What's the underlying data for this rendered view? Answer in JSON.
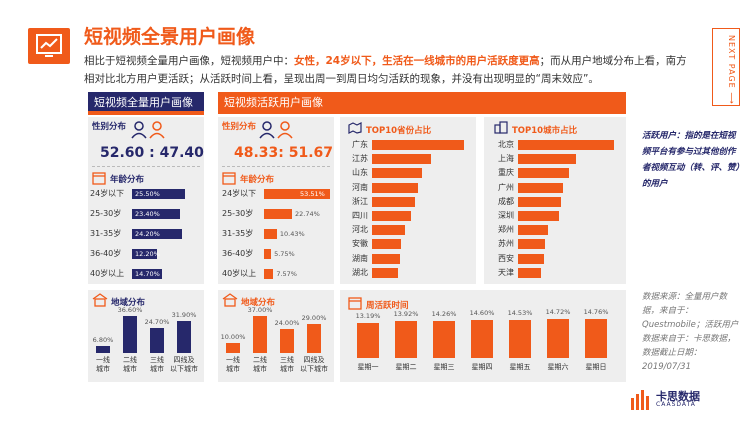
{
  "page": {
    "title": "短视频全景用户画像",
    "intro_parts": [
      {
        "text": "相比于短视频全量用户画像，短视频用户中：",
        "hl": false
      },
      {
        "text": "女性，24岁以下，生活在一线城市的用户活跃度更高",
        "hl": true
      },
      {
        "text": "；而从用户地域分布上看，南方相对比北方用户更活跃；从活跃时间上看，呈现出周一到周日均匀活跃的现象，并没有出现明显的“周末效应”。",
        "hl": false
      }
    ],
    "next_page": "NEXT PAGE ⟶"
  },
  "panels": {
    "full": {
      "header": "短视频全量用户画像"
    },
    "active": {
      "header": "短视频活跃用户画像"
    }
  },
  "gender": {
    "label": "性别分布",
    "full_ratio": "52.60 : 47.40",
    "active_ratio": "48.33: 51.67"
  },
  "side_note": "活跃用户：指的是在短视频平台有参与过其他创作者视频互动（转、评、赞）的用户",
  "source": "数据来源：全量用户数据，来自于：Questmobile；活跃用户数据来自于：卡思数据，数据截止日期：2019/07/31",
  "logo": {
    "text": "卡思数据",
    "sub": "CAASDATA"
  },
  "colors": {
    "navy": "#26286b",
    "orange": "#f05a1a",
    "panel": "#eeeeee"
  },
  "chart_data": [
    {
      "id": "full_age",
      "type": "bar",
      "title": "年龄分布",
      "orientation": "horizontal",
      "categories": [
        "24岁以下",
        "25-30岁",
        "31-35岁",
        "36-40岁",
        "40岁以上"
      ],
      "values": [
        25.5,
        23.4,
        24.2,
        12.2,
        14.7
      ],
      "labels": [
        "25.50%",
        "23.40%",
        "24.20%",
        "12.20%",
        "14.70%"
      ],
      "xlim": [
        0,
        30
      ]
    },
    {
      "id": "full_region",
      "type": "bar",
      "title": "地域分布",
      "categories": [
        "一线\n城市",
        "二线\n城市",
        "三线\n城市",
        "四线及\n以下城市"
      ],
      "values": [
        6.8,
        36.6,
        24.7,
        31.9
      ],
      "labels": [
        "6.80%",
        "36.60%",
        "24.70%",
        "31.90%"
      ],
      "ylim": [
        0,
        40
      ]
    },
    {
      "id": "active_age",
      "type": "bar",
      "title": "年龄分布",
      "orientation": "horizontal",
      "categories": [
        "24岁以下",
        "25-30岁",
        "31-35岁",
        "36-40岁",
        "40岁以上"
      ],
      "values": [
        53.51,
        22.74,
        10.43,
        5.75,
        7.57
      ],
      "labels": [
        "53.51%",
        "22.74%",
        "10.43%",
        "5.75%",
        "7.57%"
      ],
      "xlim": [
        0,
        60
      ]
    },
    {
      "id": "active_region",
      "type": "bar",
      "title": "地域分布",
      "categories": [
        "一线\n城市",
        "二线\n城市",
        "三线\n城市",
        "四线及\n以下城市"
      ],
      "values": [
        10.0,
        37.0,
        24.0,
        29.0
      ],
      "labels": [
        "10.00%",
        "37.00%",
        "24.00%",
        "29.00%"
      ],
      "ylim": [
        0,
        40
      ]
    },
    {
      "id": "top10_province",
      "type": "bar",
      "title": "TOP10省份占比",
      "orientation": "horizontal",
      "categories": [
        "广东",
        "江苏",
        "山东",
        "河南",
        "浙江",
        "四川",
        "河北",
        "安徽",
        "湖南",
        "湖北"
      ],
      "values": [
        14.0,
        9.0,
        7.6,
        7.0,
        6.6,
        6.0,
        5.0,
        4.4,
        4.2,
        4.0
      ]
    },
    {
      "id": "top10_city",
      "type": "bar",
      "title": "TOP10城市占比",
      "orientation": "horizontal",
      "categories": [
        "北京",
        "上海",
        "重庆",
        "广州",
        "成都",
        "深圳",
        "郑州",
        "苏州",
        "西安",
        "天津"
      ],
      "values": [
        14.0,
        8.4,
        7.4,
        6.6,
        6.2,
        6.0,
        4.4,
        4.0,
        3.8,
        3.4
      ]
    },
    {
      "id": "weekly_active",
      "type": "bar",
      "title": "周活跃时间",
      "categories": [
        "星期一",
        "星期二",
        "星期三",
        "星期四",
        "星期五",
        "星期六",
        "星期日"
      ],
      "values": [
        13.19,
        13.92,
        14.26,
        14.6,
        14.53,
        14.72,
        14.76
      ],
      "labels": [
        "13.19%",
        "13.92%",
        "14.26%",
        "14.60%",
        "14.53%",
        "14.72%",
        "14.76%"
      ],
      "ylim": [
        0,
        16
      ]
    }
  ]
}
